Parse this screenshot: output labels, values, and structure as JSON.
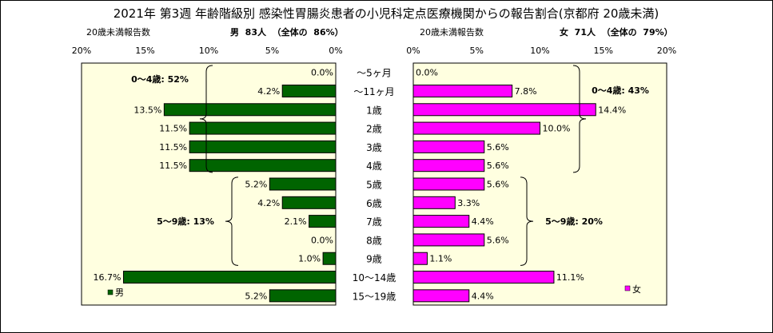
{
  "chart_data": {
    "type": "bar",
    "title": "2021年 第3週 年齢階級別 感染性胃腸炎患者の小児科定点医療機関からの報告割合(京都府 20歳未満)",
    "categories": [
      "～5ヶ月",
      "～11ヶ月",
      "1歳",
      "2歳",
      "3歳",
      "4歳",
      "5歳",
      "6歳",
      "7歳",
      "8歳",
      "9歳",
      "10～14歳",
      "15～19歳"
    ],
    "left": {
      "header_label": "20歳未満報告数",
      "header_stat": "男  83人  （全体の  86%）",
      "legend": "男",
      "color": "#006400",
      "tick_labels": [
        "20%",
        "15%",
        "10%",
        "5%",
        "0%"
      ],
      "ticks": [
        20,
        15,
        10,
        5,
        0
      ],
      "xlim": [
        0,
        20
      ],
      "values": [
        0.0,
        4.2,
        13.5,
        11.5,
        11.5,
        11.5,
        5.2,
        4.2,
        2.1,
        0.0,
        1.0,
        16.7,
        5.2
      ],
      "value_labels": [
        "0.0%",
        "4.2%",
        "13.5%",
        "11.5%",
        "11.5%",
        "11.5%",
        "5.2%",
        "4.2%",
        "2.1%",
        "0.0%",
        "1.0%",
        "16.7%",
        "5.2%"
      ],
      "groups": [
        {
          "label": "0～4歳: 52%",
          "from": 0,
          "to": 5
        },
        {
          "label": "5～9歳: 13%",
          "from": 6,
          "to": 10
        }
      ]
    },
    "right": {
      "header_label": "20歳未満報告数",
      "header_stat": "女  71人  （全体の  79%）",
      "legend": "女",
      "color": "#ff00ff",
      "tick_labels": [
        "0%",
        "5%",
        "10%",
        "15%",
        "20%"
      ],
      "ticks": [
        0,
        5,
        10,
        15,
        20
      ],
      "xlim": [
        0,
        20
      ],
      "values": [
        0.0,
        7.8,
        14.4,
        10.0,
        5.6,
        5.6,
        5.6,
        3.3,
        4.4,
        5.6,
        1.1,
        11.1,
        4.4
      ],
      "value_labels": [
        "0.0%",
        "7.8%",
        "14.4%",
        "10.0%",
        "5.6%",
        "5.6%",
        "5.6%",
        "3.3%",
        "4.4%",
        "5.6%",
        "1.1%",
        "11.1%",
        "4.4%"
      ],
      "groups": [
        {
          "label": "0～4歳: 43%",
          "from": 0,
          "to": 5
        },
        {
          "label": "5～9歳: 20%",
          "from": 6,
          "to": 10
        }
      ]
    },
    "plot_background": "#ffffe0",
    "grid": false
  }
}
